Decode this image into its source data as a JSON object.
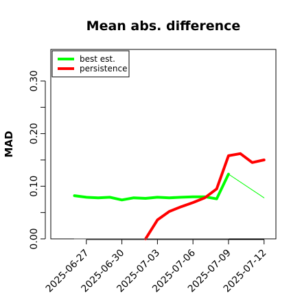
{
  "chart_data": {
    "type": "line",
    "title": "Mean abs. difference",
    "xlabel": "",
    "ylabel": "MAD",
    "ylim": [
      0.0,
      0.36
    ],
    "xlim": [
      "2025-06-24",
      "2025-07-13"
    ],
    "yticks": [
      0.0,
      0.1,
      0.2,
      0.3
    ],
    "ytick_labels": [
      "0.00",
      "0.10",
      "0.20",
      "0.30"
    ],
    "xticks": [
      "2025-06-27",
      "2025-06-30",
      "2025-07-03",
      "2025-07-06",
      "2025-07-09",
      "2025-07-12"
    ],
    "legend_position": "top-left",
    "grid": false,
    "series": [
      {
        "name": "best est.",
        "color": "#00ff00",
        "style": "thick",
        "x": [
          "2025-06-26",
          "2025-06-27",
          "2025-06-28",
          "2025-06-29",
          "2025-06-30",
          "2025-07-01",
          "2025-07-02",
          "2025-07-03",
          "2025-07-04",
          "2025-07-05",
          "2025-07-06",
          "2025-07-07",
          "2025-07-08",
          "2025-07-09"
        ],
        "y": [
          0.082,
          0.079,
          0.078,
          0.079,
          0.074,
          0.078,
          0.077,
          0.079,
          0.078,
          0.079,
          0.08,
          0.08,
          0.076,
          0.123
        ]
      },
      {
        "name": "",
        "color": "#00ff00",
        "style": "thin",
        "x": [
          "2025-07-09",
          "2025-07-12"
        ],
        "y": [
          0.123,
          0.078
        ]
      },
      {
        "name": "persistence",
        "color": "#ff0000",
        "style": "thick",
        "x": [
          "2025-07-02",
          "2025-07-03",
          "2025-07-04",
          "2025-07-05",
          "2025-07-06",
          "2025-07-07",
          "2025-07-08",
          "2025-07-09",
          "2025-07-10",
          "2025-07-11",
          "2025-07-12"
        ],
        "y": [
          0.0,
          0.036,
          0.052,
          0.061,
          0.069,
          0.078,
          0.095,
          0.158,
          0.162,
          0.145,
          0.15
        ]
      },
      {
        "name": "",
        "color": "#666666",
        "style": "hairline",
        "x": [
          "2025-06-26",
          "2025-07-09"
        ],
        "y": [
          0.0,
          0.0
        ]
      }
    ]
  }
}
